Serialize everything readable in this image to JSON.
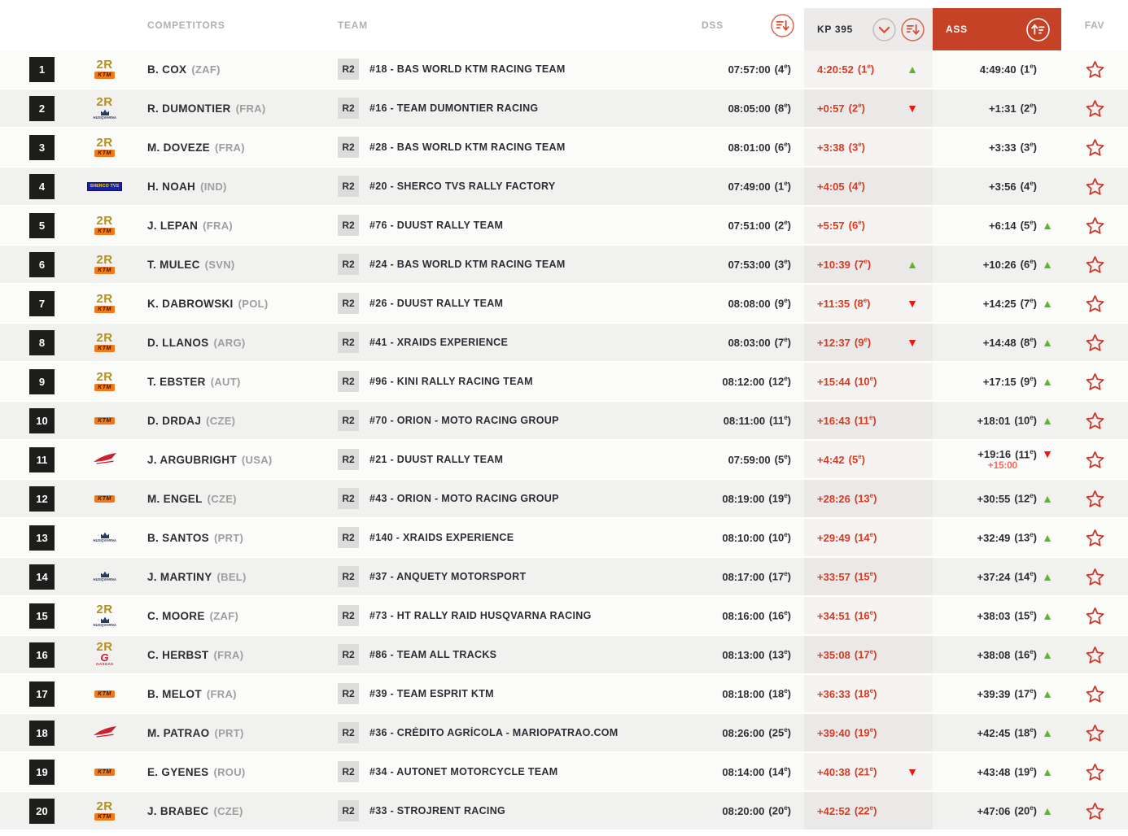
{
  "header": {
    "competitors_label": "COMPETITORS",
    "team_label": "TEAM",
    "dss_label": "DSS",
    "kp_label": "KP 395",
    "ass_label": "ASS",
    "fav_label": "FAV"
  },
  "labels": {
    "team_badge": "R2",
    "rank_suffix": "e"
  },
  "colors": {
    "ass_header_red": "#c64227",
    "kp_value_red": "#d93a22",
    "trend_up_green": "#5eb52d",
    "trend_down_red": "#f31313",
    "penalty_red": "#f4695c",
    "position_badge_black": "#1d1d1b",
    "ktm_orange": "#f07818",
    "gold_2r": "#b3901f"
  },
  "icons": {
    "dss_sort": "sort-descending-icon",
    "kp_chevron": "chevron-down-icon",
    "kp_sort": "sort-descending-icon",
    "ass_sort": "sort-ascending-icon",
    "fav": "star-icon",
    "trend_up_glyph": "▲",
    "trend_down_glyph": "▼"
  },
  "brand_meta": {
    "2R": {
      "label": "2R"
    },
    "KTM": {
      "label": "KTM"
    },
    "HUSQVARNA": {
      "label": "HUSQVARNA"
    },
    "HONDA": {
      "label": "HONDA"
    },
    "GASGAS": {
      "g": "G",
      "label": "GASGAS"
    },
    "SHERCO": {
      "label": "SHERCO TVS"
    }
  },
  "rows": [
    {
      "pos": "1",
      "brands": [
        "2R",
        "KTM"
      ],
      "name": "B. COX",
      "country": "(ZAF)",
      "vehicle": "#18 - BAS WORLD KTM RACING TEAM",
      "dss_time": "07:57:00",
      "dss_rank": "4",
      "kp_time": "4:20:52",
      "kp_rank": "1",
      "kp_trend": "up",
      "ass_time": "4:49:40",
      "ass_rank": "1",
      "ass_trend": "",
      "ass_penalty": ""
    },
    {
      "pos": "2",
      "brands": [
        "2R",
        "HUSQVARNA"
      ],
      "name": "R. DUMONTIER",
      "country": "(FRA)",
      "vehicle": "#16 - TEAM DUMONTIER RACING",
      "dss_time": "08:05:00",
      "dss_rank": "8",
      "kp_time": "+0:57",
      "kp_rank": "2",
      "kp_trend": "down",
      "ass_time": "+1:31",
      "ass_rank": "2",
      "ass_trend": "",
      "ass_penalty": ""
    },
    {
      "pos": "3",
      "brands": [
        "2R",
        "KTM"
      ],
      "name": "M. DOVEZE",
      "country": "(FRA)",
      "vehicle": "#28 - BAS WORLD KTM RACING TEAM",
      "dss_time": "08:01:00",
      "dss_rank": "6",
      "kp_time": "+3:38",
      "kp_rank": "3",
      "kp_trend": "",
      "ass_time": "+3:33",
      "ass_rank": "3",
      "ass_trend": "",
      "ass_penalty": ""
    },
    {
      "pos": "4",
      "brands": [
        "SHERCO"
      ],
      "name": "H. NOAH",
      "country": "(IND)",
      "vehicle": "#20 - SHERCO TVS RALLY FACTORY",
      "dss_time": "07:49:00",
      "dss_rank": "1",
      "kp_time": "+4:05",
      "kp_rank": "4",
      "kp_trend": "",
      "ass_time": "+3:56",
      "ass_rank": "4",
      "ass_trend": "",
      "ass_penalty": ""
    },
    {
      "pos": "5",
      "brands": [
        "2R",
        "KTM"
      ],
      "name": "J. LEPAN",
      "country": "(FRA)",
      "vehicle": "#76 - DUUST RALLY TEAM",
      "dss_time": "07:51:00",
      "dss_rank": "2",
      "kp_time": "+5:57",
      "kp_rank": "6",
      "kp_trend": "",
      "ass_time": "+6:14",
      "ass_rank": "5",
      "ass_trend": "up",
      "ass_penalty": ""
    },
    {
      "pos": "6",
      "brands": [
        "2R",
        "KTM"
      ],
      "name": "T. MULEC",
      "country": "(SVN)",
      "vehicle": "#24 - BAS WORLD KTM RACING TEAM",
      "dss_time": "07:53:00",
      "dss_rank": "3",
      "kp_time": "+10:39",
      "kp_rank": "7",
      "kp_trend": "up",
      "ass_time": "+10:26",
      "ass_rank": "6",
      "ass_trend": "up",
      "ass_penalty": ""
    },
    {
      "pos": "7",
      "brands": [
        "2R",
        "KTM"
      ],
      "name": "K. DABROWSKI",
      "country": "(POL)",
      "vehicle": "#26 - DUUST RALLY TEAM",
      "dss_time": "08:08:00",
      "dss_rank": "9",
      "kp_time": "+11:35",
      "kp_rank": "8",
      "kp_trend": "down",
      "ass_time": "+14:25",
      "ass_rank": "7",
      "ass_trend": "up",
      "ass_penalty": ""
    },
    {
      "pos": "8",
      "brands": [
        "2R",
        "KTM"
      ],
      "name": "D. LLANOS",
      "country": "(ARG)",
      "vehicle": "#41 - XRAIDS EXPERIENCE",
      "dss_time": "08:03:00",
      "dss_rank": "7",
      "kp_time": "+12:37",
      "kp_rank": "9",
      "kp_trend": "down",
      "ass_time": "+14:48",
      "ass_rank": "8",
      "ass_trend": "up",
      "ass_penalty": ""
    },
    {
      "pos": "9",
      "brands": [
        "2R",
        "KTM"
      ],
      "name": "T. EBSTER",
      "country": "(AUT)",
      "vehicle": "#96 - KINI RALLY RACING TEAM",
      "dss_time": "08:12:00",
      "dss_rank": "12",
      "kp_time": "+15:44",
      "kp_rank": "10",
      "kp_trend": "",
      "ass_time": "+17:15",
      "ass_rank": "9",
      "ass_trend": "up",
      "ass_penalty": ""
    },
    {
      "pos": "10",
      "brands": [
        "KTM"
      ],
      "name": "D. DRDAJ",
      "country": "(CZE)",
      "vehicle": "#70 - ORION - MOTO RACING GROUP",
      "dss_time": "08:11:00",
      "dss_rank": "11",
      "kp_time": "+16:43",
      "kp_rank": "11",
      "kp_trend": "",
      "ass_time": "+18:01",
      "ass_rank": "10",
      "ass_trend": "up",
      "ass_penalty": ""
    },
    {
      "pos": "11",
      "brands": [
        "HONDA"
      ],
      "name": "J. ARGUBRIGHT",
      "country": "(USA)",
      "vehicle": "#21 - DUUST RALLY TEAM",
      "dss_time": "07:59:00",
      "dss_rank": "5",
      "kp_time": "+4:42",
      "kp_rank": "5",
      "kp_trend": "",
      "ass_time": "+19:16",
      "ass_rank": "11",
      "ass_trend": "down",
      "ass_penalty": "+15:00"
    },
    {
      "pos": "12",
      "brands": [
        "KTM"
      ],
      "name": "M. ENGEL",
      "country": "(CZE)",
      "vehicle": "#43 - ORION - MOTO RACING GROUP",
      "dss_time": "08:19:00",
      "dss_rank": "19",
      "kp_time": "+28:26",
      "kp_rank": "13",
      "kp_trend": "",
      "ass_time": "+30:55",
      "ass_rank": "12",
      "ass_trend": "up",
      "ass_penalty": ""
    },
    {
      "pos": "13",
      "brands": [
        "HUSQVARNA"
      ],
      "name": "B. SANTOS",
      "country": "(PRT)",
      "vehicle": "#140 - XRAIDS EXPERIENCE",
      "dss_time": "08:10:00",
      "dss_rank": "10",
      "kp_time": "+29:49",
      "kp_rank": "14",
      "kp_trend": "",
      "ass_time": "+32:49",
      "ass_rank": "13",
      "ass_trend": "up",
      "ass_penalty": ""
    },
    {
      "pos": "14",
      "brands": [
        "HUSQVARNA"
      ],
      "name": "J. MARTINY",
      "country": "(BEL)",
      "vehicle": "#37 - ANQUETY MOTORSPORT",
      "dss_time": "08:17:00",
      "dss_rank": "17",
      "kp_time": "+33:57",
      "kp_rank": "15",
      "kp_trend": "",
      "ass_time": "+37:24",
      "ass_rank": "14",
      "ass_trend": "up",
      "ass_penalty": ""
    },
    {
      "pos": "15",
      "brands": [
        "2R",
        "HUSQVARNA"
      ],
      "name": "C. MOORE",
      "country": "(ZAF)",
      "vehicle": "#73 - HT RALLY RAID HUSQVARNA RACING",
      "dss_time": "08:16:00",
      "dss_rank": "16",
      "kp_time": "+34:51",
      "kp_rank": "16",
      "kp_trend": "",
      "ass_time": "+38:03",
      "ass_rank": "15",
      "ass_trend": "up",
      "ass_penalty": ""
    },
    {
      "pos": "16",
      "brands": [
        "2R",
        "GASGAS"
      ],
      "name": "C. HERBST",
      "country": "(FRA)",
      "vehicle": "#86 - TEAM ALL TRACKS",
      "dss_time": "08:13:00",
      "dss_rank": "13",
      "kp_time": "+35:08",
      "kp_rank": "17",
      "kp_trend": "",
      "ass_time": "+38:08",
      "ass_rank": "16",
      "ass_trend": "up",
      "ass_penalty": ""
    },
    {
      "pos": "17",
      "brands": [
        "KTM"
      ],
      "name": "B. MELOT",
      "country": "(FRA)",
      "vehicle": "#39 - TEAM ESPRIT KTM",
      "dss_time": "08:18:00",
      "dss_rank": "18",
      "kp_time": "+36:33",
      "kp_rank": "18",
      "kp_trend": "",
      "ass_time": "+39:39",
      "ass_rank": "17",
      "ass_trend": "up",
      "ass_penalty": ""
    },
    {
      "pos": "18",
      "brands": [
        "HONDA"
      ],
      "name": "M. PATRAO",
      "country": "(PRT)",
      "vehicle": "#36 - CRÉDITO AGRÍCOLA - MARIOPATRAO.COM",
      "dss_time": "08:26:00",
      "dss_rank": "25",
      "kp_time": "+39:40",
      "kp_rank": "19",
      "kp_trend": "",
      "ass_time": "+42:45",
      "ass_rank": "18",
      "ass_trend": "up",
      "ass_penalty": ""
    },
    {
      "pos": "19",
      "brands": [
        "KTM"
      ],
      "name": "E. GYENES",
      "country": "(ROU)",
      "vehicle": "#34 - AUTONET MOTORCYCLE TEAM",
      "dss_time": "08:14:00",
      "dss_rank": "14",
      "kp_time": "+40:38",
      "kp_rank": "21",
      "kp_trend": "down",
      "ass_time": "+43:48",
      "ass_rank": "19",
      "ass_trend": "up",
      "ass_penalty": ""
    },
    {
      "pos": "20",
      "brands": [
        "2R",
        "KTM"
      ],
      "name": "J. BRABEC",
      "country": "(CZE)",
      "vehicle": "#33 - STROJRENT RACING",
      "dss_time": "08:20:00",
      "dss_rank": "20",
      "kp_time": "+42:52",
      "kp_rank": "22",
      "kp_trend": "",
      "ass_time": "+47:06",
      "ass_rank": "20",
      "ass_trend": "up",
      "ass_penalty": ""
    }
  ]
}
